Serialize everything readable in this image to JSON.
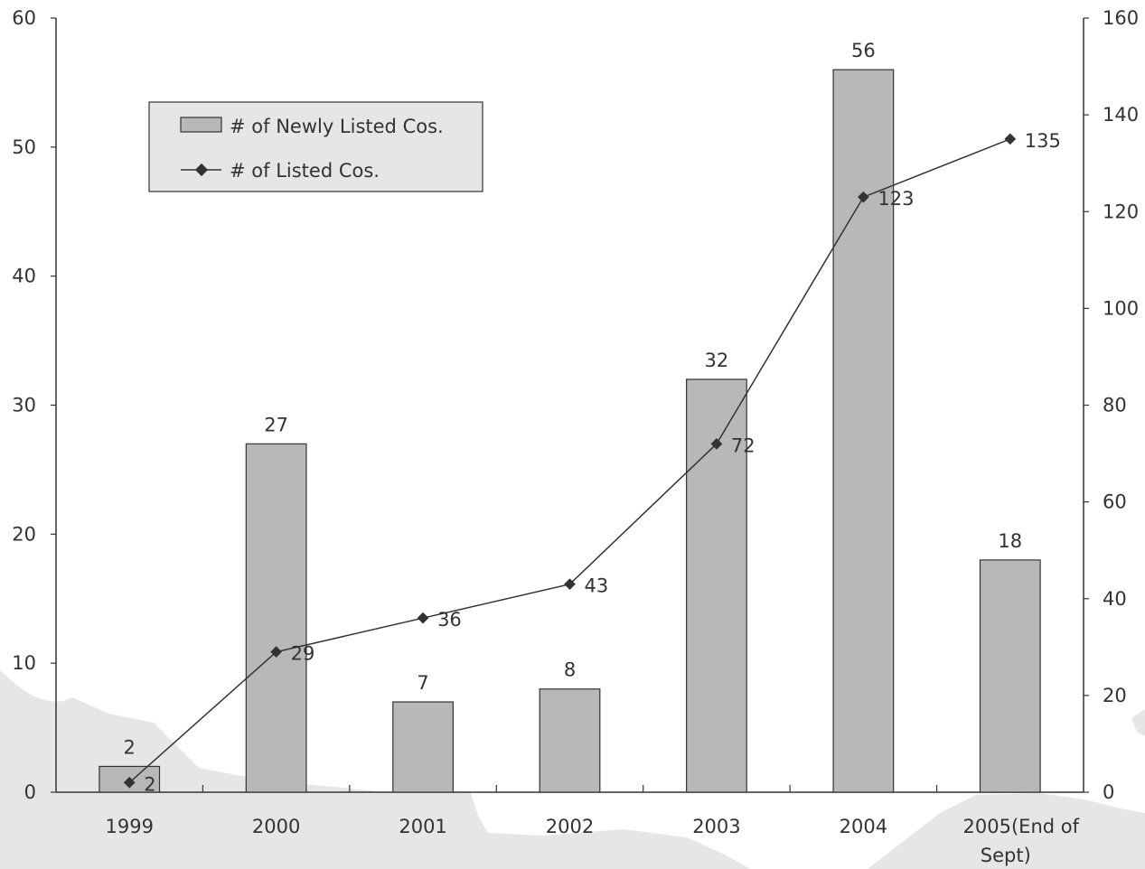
{
  "chart_data": {
    "type": "bar",
    "categories": [
      "1999",
      "2000",
      "2001",
      "2002",
      "2003",
      "2004",
      "2005(End of Sept)"
    ],
    "series": [
      {
        "name": "# of Newly Listed Cos.",
        "type": "bar",
        "axis": "left",
        "values": [
          2,
          27,
          7,
          8,
          32,
          56,
          18
        ]
      },
      {
        "name": "# of Listed Cos.",
        "type": "line",
        "axis": "right",
        "values": [
          2,
          29,
          36,
          43,
          72,
          123,
          135
        ]
      }
    ],
    "y_left": {
      "min": 0,
      "max": 60,
      "step": 10,
      "ticks": [
        "0",
        "10",
        "20",
        "30",
        "40",
        "50",
        "60"
      ]
    },
    "y_right": {
      "min": 0,
      "max": 160,
      "step": 20,
      "ticks": [
        "0",
        "20",
        "40",
        "60",
        "80",
        "100",
        "120",
        "140",
        "160"
      ]
    },
    "legend_position": "top-left",
    "grid": false,
    "colors": {
      "bar": "#b8b8b8",
      "bar_edge": "#333333",
      "line": "#333333",
      "background_map": "#e6e6e6"
    }
  }
}
